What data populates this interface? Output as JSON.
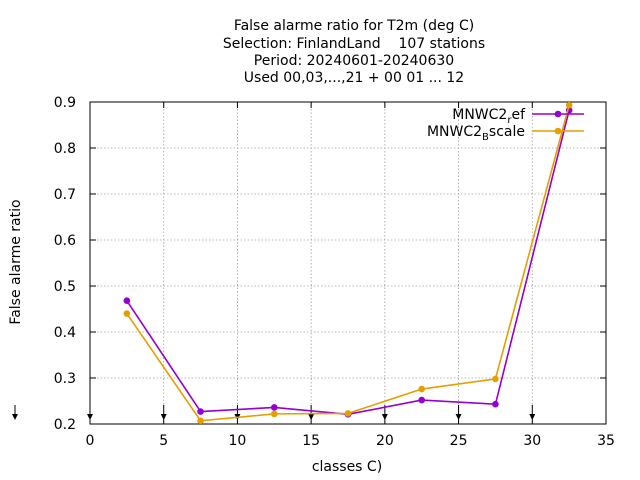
{
  "chart_data": {
    "type": "line",
    "title_lines": [
      "False alarme ratio  for T2m (deg C)",
      "Selection: FinlandLand    107 stations",
      "Period: 20240601-20240630",
      "Used 00,03,...,21 + 00 01 ... 12"
    ],
    "xlabel": "classes C)",
    "ylabel": "False alarme ratio",
    "xlim": [
      0,
      35
    ],
    "ylim": [
      0.2,
      0.9
    ],
    "xticks": [
      0,
      5,
      10,
      15,
      20,
      25,
      30,
      35
    ],
    "yticks": [
      0.2,
      0.3,
      0.4,
      0.5,
      0.6,
      0.7,
      0.8,
      0.9
    ],
    "grid": true,
    "legend_position": "top-right",
    "class_markers": [
      0,
      5,
      10,
      15,
      20,
      25,
      30
    ],
    "series": [
      {
        "name_main": "MNWC2",
        "name_sub": "r",
        "name_tail": "ef",
        "color": "#9400d3",
        "x": [
          2.5,
          7.5,
          12.5,
          17.5,
          22.5,
          27.5,
          32.5
        ],
        "y": [
          0.468,
          0.227,
          0.236,
          0.221,
          0.252,
          0.243,
          0.882
        ]
      },
      {
        "name_main": "MNWC2",
        "name_sub": "B",
        "name_tail": "scale",
        "color": "#e69f00",
        "x": [
          2.5,
          7.5,
          12.5,
          17.5,
          22.5,
          27.5,
          32.5
        ],
        "y": [
          0.44,
          0.207,
          0.222,
          0.223,
          0.276,
          0.298,
          0.893
        ]
      }
    ]
  }
}
